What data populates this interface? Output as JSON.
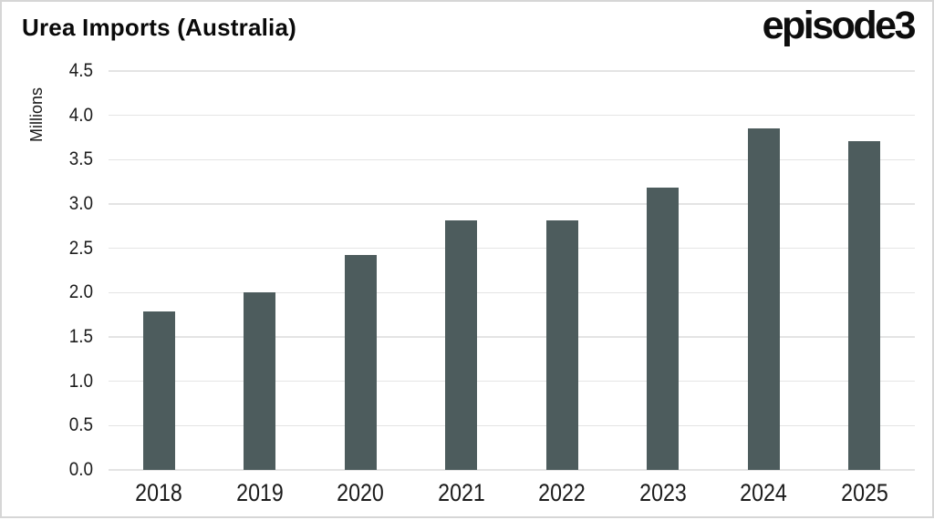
{
  "header": {
    "title": "Urea Imports (Australia)",
    "logo_text": "episode3"
  },
  "chart_data": {
    "type": "bar",
    "title": "Urea Imports (Australia)",
    "categories": [
      "2018",
      "2019",
      "2020",
      "2021",
      "2022",
      "2023",
      "2024",
      "2025"
    ],
    "values": [
      1.79,
      2.0,
      2.42,
      2.82,
      2.82,
      3.19,
      3.85,
      3.71
    ],
    "xlabel": "",
    "ylabel": "Millions",
    "ylim": [
      0,
      4.5
    ],
    "ytick_step": 0.5,
    "ytick_labels": [
      "0.0",
      "0.5",
      "1.0",
      "1.5",
      "2.0",
      "2.5",
      "3.0",
      "3.5",
      "4.0",
      "4.5"
    ],
    "grid": true,
    "legend": false,
    "bar_color": "#4d5c5d",
    "gridline_color": "#e4e4e4",
    "units": "Millions"
  }
}
